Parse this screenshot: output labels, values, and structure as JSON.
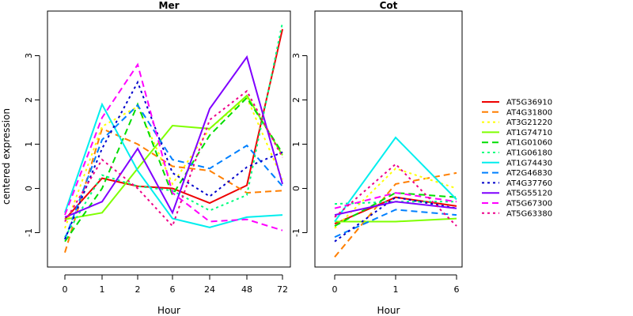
{
  "chart_data": {
    "type": "line",
    "ylabel": "centered expression",
    "xlabel": "Hour",
    "ylim": [
      -1.75,
      3.95
    ],
    "y_ticks": [
      -1,
      0,
      1,
      2,
      3
    ],
    "legend_position": "right",
    "panels": [
      {
        "title": "Mer",
        "x_ticks": [
          "0",
          "1",
          "2",
          "6",
          "24",
          "48",
          "72"
        ],
        "series": [
          {
            "name": "AT5G36910",
            "color": "#ee0000",
            "dash": "solid",
            "values": [
              -0.7,
              0.23,
              0.05,
              0.0,
              -0.33,
              0.07,
              3.6
            ]
          },
          {
            "name": "AT4G31800",
            "color": "#ff7f00",
            "dash": "dashed",
            "values": [
              -1.45,
              1.35,
              1.0,
              0.5,
              0.4,
              -0.1,
              -0.05
            ]
          },
          {
            "name": "AT3G21220",
            "color": "#ffff00",
            "dash": "dotted",
            "values": [
              -0.9,
              1.4,
              1.85,
              0.1,
              1.35,
              2.05,
              0.2
            ]
          },
          {
            "name": "AT1G74710",
            "color": "#7fff00",
            "dash": "solid",
            "values": [
              -0.7,
              -0.55,
              0.45,
              1.42,
              1.35,
              2.1,
              0.75
            ]
          },
          {
            "name": "AT1G01060",
            "color": "#00dd00",
            "dash": "dashed",
            "values": [
              -1.2,
              0.0,
              1.9,
              -0.15,
              1.2,
              2.05,
              0.8
            ]
          },
          {
            "name": "AT1G06180",
            "color": "#00ff7f",
            "dash": "dotted",
            "values": [
              -1.1,
              0.3,
              0.05,
              -0.05,
              -0.5,
              -0.15,
              3.75
            ]
          },
          {
            "name": "AT1G74430",
            "color": "#00eeee",
            "dash": "solid",
            "values": [
              -0.55,
              1.9,
              0.4,
              -0.68,
              -0.88,
              -0.65,
              -0.6
            ]
          },
          {
            "name": "AT2G46830",
            "color": "#0080ff",
            "dash": "dashed",
            "values": [
              -1.15,
              1.1,
              1.88,
              0.65,
              0.45,
              0.97,
              0.05
            ]
          },
          {
            "name": "AT4G37760",
            "color": "#0000cc",
            "dash": "dotted",
            "values": [
              -1.15,
              0.9,
              2.4,
              0.35,
              -0.18,
              0.48,
              0.82
            ]
          },
          {
            "name": "AT5G55120",
            "color": "#7f00ff",
            "dash": "solid",
            "values": [
              -0.65,
              -0.3,
              0.9,
              -0.55,
              1.8,
              2.97,
              0.1
            ]
          },
          {
            "name": "AT5G67300",
            "color": "#ff00ff",
            "dash": "dashed",
            "values": [
              -0.6,
              1.6,
              2.8,
              -0.1,
              -0.75,
              -0.7,
              -0.95
            ]
          },
          {
            "name": "AT5G63380",
            "color": "#ee0088",
            "dash": "dotted",
            "values": [
              -0.75,
              0.65,
              0.0,
              -0.85,
              1.55,
              2.2,
              0.7
            ]
          }
        ]
      },
      {
        "title": "Cot",
        "x_ticks": [
          "0",
          "1",
          "6"
        ],
        "series": [
          {
            "name": "AT5G36910",
            "color": "#ee0000",
            "dash": "solid",
            "values": [
              -0.8,
              -0.2,
              -0.4
            ]
          },
          {
            "name": "AT4G31800",
            "color": "#ff7f00",
            "dash": "dashed",
            "values": [
              -1.55,
              0.1,
              0.35
            ]
          },
          {
            "name": "AT3G21220",
            "color": "#ffff00",
            "dash": "dotted",
            "values": [
              -0.9,
              0.45,
              0.0
            ]
          },
          {
            "name": "AT1G74710",
            "color": "#7fff00",
            "dash": "solid",
            "values": [
              -0.75,
              -0.75,
              -0.68
            ]
          },
          {
            "name": "AT1G01060",
            "color": "#00dd00",
            "dash": "dashed",
            "values": [
              -0.85,
              -0.1,
              -0.2
            ]
          },
          {
            "name": "AT1G06180",
            "color": "#00ff7f",
            "dash": "dotted",
            "values": [
              -0.35,
              -0.3,
              -0.3
            ]
          },
          {
            "name": "AT1G74430",
            "color": "#00eeee",
            "dash": "solid",
            "values": [
              -0.75,
              1.15,
              -0.25
            ]
          },
          {
            "name": "AT2G46830",
            "color": "#0080ff",
            "dash": "dashed",
            "values": [
              -1.1,
              -0.48,
              -0.6
            ]
          },
          {
            "name": "AT4G37760",
            "color": "#0000cc",
            "dash": "dotted",
            "values": [
              -1.2,
              -0.2,
              -0.45
            ]
          },
          {
            "name": "AT5G55120",
            "color": "#7f00ff",
            "dash": "solid",
            "values": [
              -0.6,
              -0.3,
              -0.45
            ]
          },
          {
            "name": "AT5G67300",
            "color": "#ff00ff",
            "dash": "dashed",
            "values": [
              -0.45,
              -0.1,
              -0.3
            ]
          },
          {
            "name": "AT5G63380",
            "color": "#ee0088",
            "dash": "dotted",
            "values": [
              -0.65,
              0.55,
              -0.85
            ]
          }
        ]
      }
    ]
  }
}
